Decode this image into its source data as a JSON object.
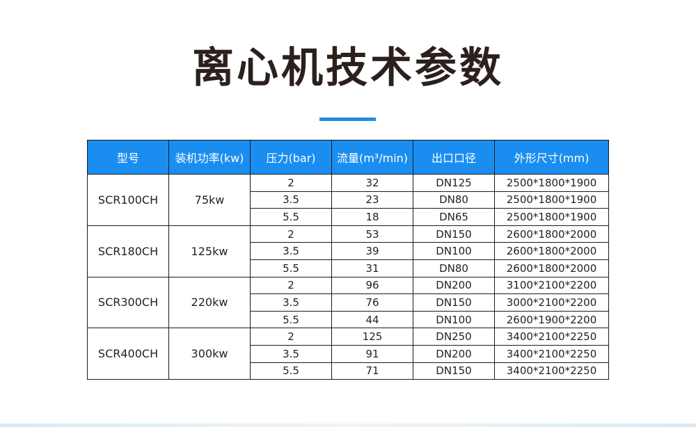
{
  "page_title": "离心机技术参数",
  "table": {
    "headers": [
      "型号",
      "装机功率(kw)",
      "压力(bar)",
      "流量(m³/min)",
      "出口口径",
      "外形尺寸(mm)"
    ],
    "groups": [
      {
        "model": "SCR100CH",
        "power": "75kw",
        "rows": [
          {
            "pressure": "2",
            "flow": "32",
            "outlet": "DN125",
            "size": "2500*1800*1900"
          },
          {
            "pressure": "3.5",
            "flow": "23",
            "outlet": "DN80",
            "size": "2500*1800*1900"
          },
          {
            "pressure": "5.5",
            "flow": "18",
            "outlet": "DN65",
            "size": "2500*1800*1900"
          }
        ]
      },
      {
        "model": "SCR180CH",
        "power": "125kw",
        "rows": [
          {
            "pressure": "2",
            "flow": "53",
            "outlet": "DN150",
            "size": "2600*1800*2000"
          },
          {
            "pressure": "3.5",
            "flow": "39",
            "outlet": "DN100",
            "size": "2600*1800*2000"
          },
          {
            "pressure": "5.5",
            "flow": "31",
            "outlet": "DN80",
            "size": "2600*1800*2000"
          }
        ]
      },
      {
        "model": "SCR300CH",
        "power": "220kw",
        "rows": [
          {
            "pressure": "2",
            "flow": "96",
            "outlet": "DN200",
            "size": "3100*2100*2200"
          },
          {
            "pressure": "3.5",
            "flow": "76",
            "outlet": "DN150",
            "size": "3000*2100*2200"
          },
          {
            "pressure": "5.5",
            "flow": "44",
            "outlet": "DN100",
            "size": "2600*1900*2200"
          }
        ]
      },
      {
        "model": "SCR400CH",
        "power": "300kw",
        "rows": [
          {
            "pressure": "2",
            "flow": "125",
            "outlet": "DN250",
            "size": "3400*2100*2250"
          },
          {
            "pressure": "3.5",
            "flow": "91",
            "outlet": "DN200",
            "size": "3400*2100*2250"
          },
          {
            "pressure": "5.5",
            "flow": "71",
            "outlet": "DN150",
            "size": "3400*2100*2250"
          }
        ]
      }
    ]
  },
  "colors": {
    "header_bg": "#1a8ef0",
    "title_text": "#2b201c",
    "accent_bar": "#1e8ee6"
  }
}
